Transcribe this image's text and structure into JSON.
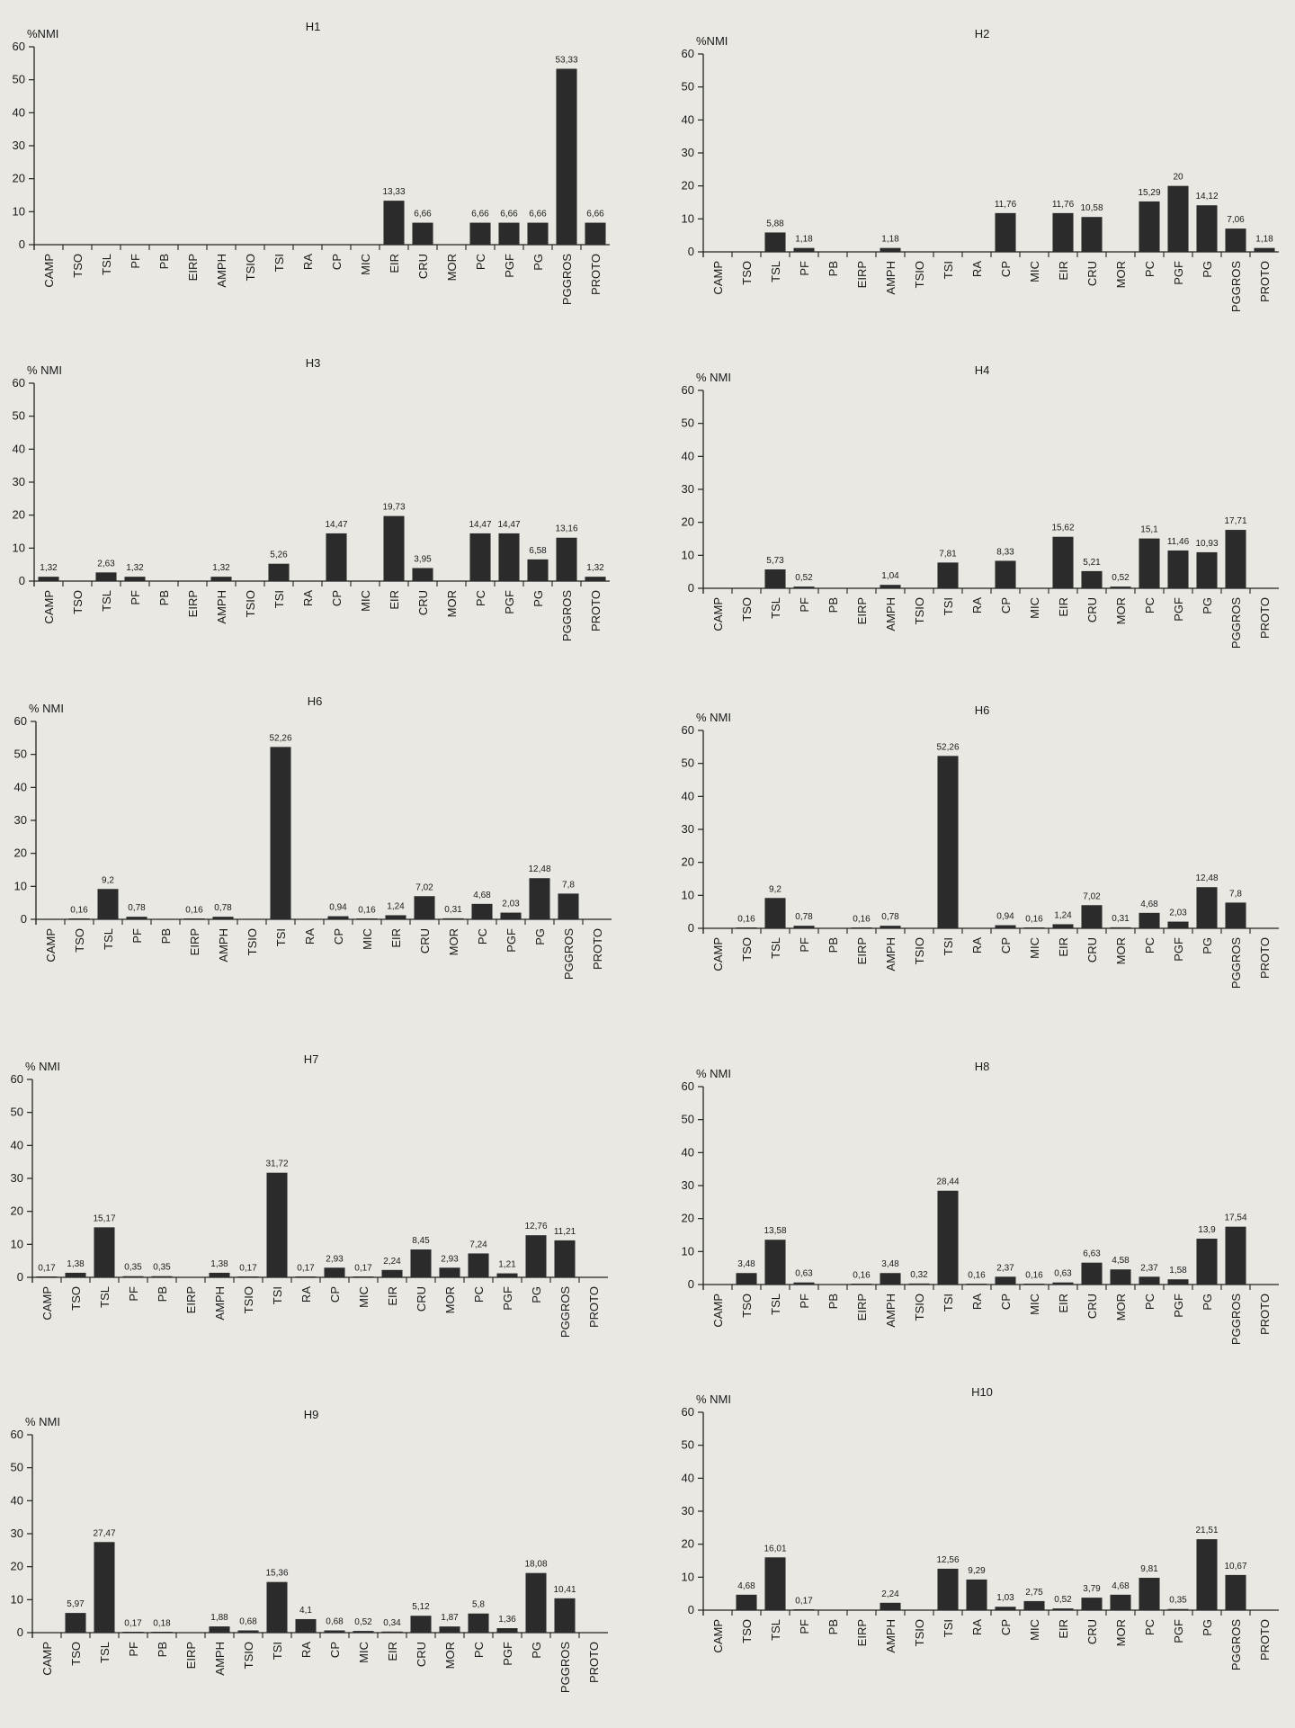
{
  "page": {
    "background": "#e9e8e3",
    "bar_color": "#2b2b2b",
    "axis_color": "#222222"
  },
  "categories": [
    "CAMP",
    "TSO",
    "TSL",
    "PF",
    "PB",
    "EIRP",
    "AMPH",
    "TSIO",
    "TSI",
    "RA",
    "CP",
    "MIC",
    "EIR",
    "CRU",
    "MOR",
    "PC",
    "PGF",
    "PG",
    "PGGROS",
    "PROTO"
  ],
  "chart_data": [
    {
      "type": "bar",
      "title": "H1",
      "ylabel": "%NMI",
      "xlabel": "",
      "ylim": [
        0,
        60
      ],
      "yticks": [
        0,
        10,
        20,
        30,
        40,
        50,
        60
      ],
      "categories": [
        "CAMP",
        "TSO",
        "TSL",
        "PF",
        "PB",
        "EIRP",
        "AMPH",
        "TSIO",
        "TSI",
        "RA",
        "CP",
        "MIC",
        "EIR",
        "CRU",
        "MOR",
        "PC",
        "PGF",
        "PG",
        "PGGROS",
        "PROTO"
      ],
      "values": [
        null,
        null,
        null,
        null,
        null,
        null,
        null,
        null,
        null,
        null,
        null,
        null,
        13.33,
        6.66,
        null,
        6.66,
        6.66,
        6.66,
        53.33,
        6.66
      ],
      "labels": [
        "",
        "",
        "",
        "",
        "",
        "",
        "",
        "",
        "",
        "",
        "",
        "",
        "13,33",
        "6,66",
        "",
        "6,66",
        "6,66",
        "6,66",
        "53,33",
        "6,66"
      ]
    },
    {
      "type": "bar",
      "title": "H2",
      "ylabel": "%NMI",
      "xlabel": "",
      "ylim": [
        0,
        60
      ],
      "yticks": [
        0,
        10,
        20,
        30,
        40,
        50,
        60
      ],
      "categories": [
        "CAMP",
        "TSO",
        "TSL",
        "PF",
        "PB",
        "EIRP",
        "AMPH",
        "TSIO",
        "TSI",
        "RA",
        "CP",
        "MIC",
        "EIR",
        "CRU",
        "MOR",
        "PC",
        "PGF",
        "PG",
        "PGGROS",
        "PROTO"
      ],
      "values": [
        null,
        null,
        5.88,
        1.18,
        null,
        null,
        1.18,
        null,
        null,
        null,
        11.76,
        null,
        11.76,
        10.58,
        null,
        15.29,
        20,
        14.12,
        7.06,
        1.18
      ],
      "labels": [
        "",
        "",
        "5,88",
        "1,18",
        "",
        "",
        "1,18",
        "",
        "",
        "",
        "11,76",
        "",
        "11,76",
        "10,58",
        "",
        "15,29",
        "20",
        "14,12",
        "7,06",
        "1,18"
      ]
    },
    {
      "type": "bar",
      "title": "H3",
      "ylabel": "% NMI",
      "xlabel": "",
      "ylim": [
        0,
        60
      ],
      "yticks": [
        0,
        10,
        20,
        30,
        40,
        50,
        60
      ],
      "categories": [
        "CAMP",
        "TSO",
        "TSL",
        "PF",
        "PB",
        "EIRP",
        "AMPH",
        "TSIO",
        "TSI",
        "RA",
        "CP",
        "MIC",
        "EIR",
        "CRU",
        "MOR",
        "PC",
        "PGF",
        "PG",
        "PGGROS",
        "PROTO"
      ],
      "values": [
        1.32,
        null,
        2.63,
        1.32,
        null,
        null,
        1.32,
        null,
        5.26,
        null,
        14.47,
        null,
        19.73,
        3.95,
        null,
        14.47,
        14.47,
        6.58,
        13.16,
        1.32
      ],
      "labels": [
        "1,32",
        "",
        "2,63",
        "1,32",
        "",
        "",
        "1,32",
        "",
        "5,26",
        "",
        "14,47",
        "",
        "19,73",
        "3,95",
        "",
        "14,47",
        "14,47",
        "6,58",
        "13,16",
        "1,32"
      ]
    },
    {
      "type": "bar",
      "title": "H4",
      "ylabel": "% NMI",
      "xlabel": "",
      "ylim": [
        0,
        60
      ],
      "yticks": [
        0,
        10,
        20,
        30,
        40,
        50,
        60
      ],
      "categories": [
        "CAMP",
        "TSO",
        "TSL",
        "PF",
        "PB",
        "EIRP",
        "AMPH",
        "TSIO",
        "TSI",
        "RA",
        "CP",
        "MIC",
        "EIR",
        "CRU",
        "MOR",
        "PC",
        "PGF",
        "PG",
        "PGGROS",
        "PROTO"
      ],
      "values": [
        null,
        null,
        5.73,
        0.52,
        null,
        null,
        1.04,
        null,
        7.81,
        null,
        8.33,
        null,
        15.62,
        5.21,
        0.52,
        15.1,
        11.46,
        10.93,
        17.71,
        null
      ],
      "labels": [
        "",
        "",
        "5,73",
        "0,52",
        "",
        "",
        "1,04",
        "",
        "7,81",
        "",
        "8,33",
        "",
        "15,62",
        "5,21",
        "0,52",
        "15,1",
        "11,46",
        "10,93",
        "17,71",
        ""
      ]
    },
    {
      "type": "bar",
      "title": "H6",
      "ylabel": "% NMI",
      "xlabel": "",
      "ylim": [
        0,
        60
      ],
      "yticks": [
        0,
        10,
        20,
        30,
        40,
        50,
        60
      ],
      "categories": [
        "CAMP",
        "TSO",
        "TSL",
        "PF",
        "PB",
        "EIRP",
        "AMPH",
        "TSIO",
        "TSI",
        "RA",
        "CP",
        "MIC",
        "EIR",
        "CRU",
        "MOR",
        "PC",
        "PGF",
        "PG",
        "PGGROS",
        "PROTO"
      ],
      "values": [
        null,
        0.16,
        9.2,
        0.78,
        null,
        0.16,
        0.78,
        null,
        52.26,
        null,
        0.94,
        0.16,
        1.24,
        7.02,
        0.31,
        4.68,
        2.03,
        12.48,
        7.8,
        null
      ],
      "labels": [
        "",
        "0,16",
        "9,2",
        "0,78",
        "",
        "0,16",
        "0,78",
        "",
        "52,26",
        "",
        "0,94",
        "0,16",
        "1,24",
        "7,02",
        "0,31",
        "4,68",
        "2,03",
        "12,48",
        "7,8",
        ""
      ]
    },
    {
      "type": "bar",
      "title": "H6",
      "ylabel": "% NMI",
      "xlabel": "",
      "ylim": [
        0,
        60
      ],
      "yticks": [
        0,
        10,
        20,
        30,
        40,
        50,
        60
      ],
      "categories": [
        "CAMP",
        "TSO",
        "TSL",
        "PF",
        "PB",
        "EIRP",
        "AMPH",
        "TSIO",
        "TSI",
        "RA",
        "CP",
        "MIC",
        "EIR",
        "CRU",
        "MOR",
        "PC",
        "PGF",
        "PG",
        "PGGROS",
        "PROTO"
      ],
      "values": [
        null,
        0.16,
        9.2,
        0.78,
        null,
        0.16,
        0.78,
        null,
        52.26,
        null,
        0.94,
        0.16,
        1.24,
        7.02,
        0.31,
        4.68,
        2.03,
        12.48,
        7.8,
        null
      ],
      "labels": [
        "",
        "0,16",
        "9,2",
        "0,78",
        "",
        "0,16",
        "0,78",
        "",
        "52,26",
        "",
        "0,94",
        "0,16",
        "1,24",
        "7,02",
        "0,31",
        "4,68",
        "2,03",
        "12,48",
        "7,8",
        ""
      ]
    },
    {
      "type": "bar",
      "title": "H7",
      "ylabel": "% NMI",
      "xlabel": "",
      "ylim": [
        0,
        60
      ],
      "yticks": [
        0,
        10,
        20,
        30,
        40,
        50,
        60
      ],
      "categories": [
        "CAMP",
        "TSO",
        "TSL",
        "PF",
        "PB",
        "EIRP",
        "AMPH",
        "TSIO",
        "TSI",
        "RA",
        "CP",
        "MIC",
        "EIR",
        "CRU",
        "MOR",
        "PC",
        "PGF",
        "PG",
        "PGGROS",
        "PROTO"
      ],
      "values": [
        0.17,
        1.38,
        15.17,
        0.35,
        0.35,
        null,
        1.38,
        0.17,
        31.72,
        0.17,
        2.93,
        0.17,
        2.24,
        8.45,
        2.93,
        7.24,
        1.21,
        12.76,
        11.21,
        null
      ],
      "labels": [
        "0,17",
        "1,38",
        "15,17",
        "0,35",
        "0,35",
        "",
        "1,38",
        "0,17",
        "31,72",
        "0,17",
        "2,93",
        "0,17",
        "2,24",
        "8,45",
        "2,93",
        "7,24",
        "1,21",
        "12,76",
        "11,21",
        ""
      ]
    },
    {
      "type": "bar",
      "title": "H8",
      "ylabel": "% NMI",
      "xlabel": "",
      "ylim": [
        0,
        60
      ],
      "yticks": [
        0,
        10,
        20,
        30,
        40,
        50,
        60
      ],
      "categories": [
        "CAMP",
        "TSO",
        "TSL",
        "PF",
        "PB",
        "EIRP",
        "AMPH",
        "TSIO",
        "TSI",
        "RA",
        "CP",
        "MIC",
        "EIR",
        "CRU",
        "MOR",
        "PC",
        "PGF",
        "PG",
        "PGGROS",
        "PROTO"
      ],
      "values": [
        null,
        3.48,
        13.58,
        0.63,
        null,
        0.16,
        3.48,
        0.32,
        28.44,
        0.16,
        2.37,
        0.16,
        0.63,
        6.63,
        4.58,
        2.37,
        1.58,
        13.9,
        17.54,
        null
      ],
      "labels": [
        "",
        "3,48",
        "13,58",
        "0,63",
        "",
        "0,16",
        "3,48",
        "0,32",
        "28,44",
        "0,16",
        "2,37",
        "0,16",
        "0,63",
        "6,63",
        "4,58",
        "2,37",
        "1,58",
        "13,9",
        "17,54",
        ""
      ]
    },
    {
      "type": "bar",
      "title": "H9",
      "ylabel": "% NMI",
      "xlabel": "",
      "ylim": [
        0,
        60
      ],
      "yticks": [
        0,
        10,
        20,
        30,
        40,
        50,
        60
      ],
      "categories": [
        "CAMP",
        "TSO",
        "TSL",
        "PF",
        "PB",
        "EIRP",
        "AMPH",
        "TSIO",
        "TSI",
        "RA",
        "CP",
        "MIC",
        "EIR",
        "CRU",
        "MOR",
        "PC",
        "PGF",
        "PG",
        "PGGROS",
        "PROTO"
      ],
      "values": [
        null,
        5.97,
        27.47,
        0.17,
        0.18,
        null,
        1.88,
        0.68,
        15.36,
        4.1,
        0.68,
        0.52,
        0.34,
        5.12,
        1.87,
        5.8,
        1.36,
        18.08,
        10.41,
        null
      ],
      "labels": [
        "",
        "5,97",
        "27,47",
        "0,17",
        "0,18",
        "",
        "1,88",
        "0,68",
        "15,36",
        "4,1",
        "0,68",
        "0,52",
        "0,34",
        "5,12",
        "1,87",
        "5,8",
        "1,36",
        "18,08",
        "10,41",
        ""
      ]
    },
    {
      "type": "bar",
      "title": "H10",
      "ylabel": "% NMI",
      "xlabel": "",
      "ylim": [
        0,
        60
      ],
      "yticks": [
        0,
        10,
        20,
        30,
        40,
        50,
        60
      ],
      "categories": [
        "CAMP",
        "TSO",
        "TSL",
        "PF",
        "PB",
        "EIRP",
        "AMPH",
        "TSIO",
        "TSI",
        "RA",
        "CP",
        "MIC",
        "EIR",
        "CRU",
        "MOR",
        "PC",
        "PGF",
        "PG",
        "PGGROS",
        "PROTO"
      ],
      "values": [
        null,
        4.68,
        16.01,
        0.17,
        null,
        null,
        2.24,
        null,
        12.56,
        9.29,
        1.03,
        2.75,
        0.52,
        3.79,
        4.68,
        9.81,
        0.35,
        21.51,
        10.67,
        null
      ],
      "labels": [
        "",
        "4,68",
        "16,01",
        "0,17",
        "",
        "",
        "2,24",
        "",
        "12,56",
        "9,29",
        "1,03",
        "2,75",
        "0,52",
        "3,79",
        "4,68",
        "9,81",
        "0,35",
        "21,51",
        "10,67",
        ""
      ]
    }
  ]
}
